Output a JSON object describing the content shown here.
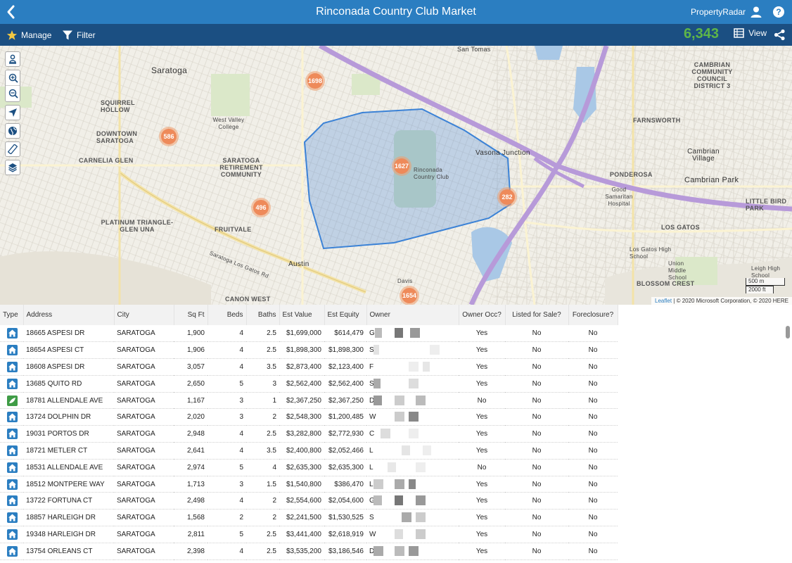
{
  "header": {
    "title": "Rinconada Country Club Market",
    "brand": "PropertyRadar"
  },
  "toolbar": {
    "manage_label": "Manage",
    "filter_label": "Filter",
    "count": "6,343",
    "view_label": "View"
  },
  "map": {
    "labels": {
      "saratoga": "Saratoga",
      "squirrel_hollow": "SQUIRREL HOLLOW",
      "downtown_saratoga": "DOWNTOWN SARATOGA",
      "carnelia_glen": "CARNELIA GLEN",
      "saratoga_retirement": "SARATOGA RETIREMENT COMMUNITY",
      "platinum_triangle": "PLATINUM TRIANGLE-GLEN UNA",
      "fruitvale": "FRUITVALE",
      "west_valley": "West Valley College",
      "rinconada": "Rinconada Country Club",
      "vasona": "Vasona Junction",
      "farnsworth": "FARNSWORTH",
      "cambrian_village": "Cambrian Village",
      "cambrian_park": "Cambrian Park",
      "ponderosa": "PONDEROSA",
      "good_samaritan": "Good Samaritan Hospital",
      "los_gatos": "LOS GATOS",
      "austin": "Austin",
      "canon_west": "CANON WEST",
      "blossom_crest": "BLOSSOM CREST",
      "cambrian_community": "CAMBRIAN COMMUNITY COUNCIL DISTRICT 3",
      "san_tomas": "San Tomas",
      "little_bird_park": "LITTLE BIRD PARK",
      "los_gatos_high": "Los Gatos High School",
      "union_middle": "Union Middle School",
      "leigh_high": "Leigh High School",
      "davis": "Davis",
      "saratoga_los_gatos_rd": "Saratoga Los Gatos Rd"
    },
    "clusters": [
      {
        "label": "1698"
      },
      {
        "label": "586"
      },
      {
        "label": "1627"
      },
      {
        "label": "282"
      },
      {
        "label": "496"
      },
      {
        "label": "1654"
      }
    ],
    "scale": {
      "metric": "500 m",
      "imperial": "2000 ft"
    },
    "attribution": {
      "link": "Leaflet",
      "text": " | © 2020 Microsoft Corporation, © 2020 HERE"
    }
  },
  "table": {
    "columns": [
      "Type",
      "Address",
      "City",
      "Sq Ft",
      "Beds",
      "Baths",
      "Est Value",
      "Est Equity",
      "Owner",
      "Owner Occ?",
      "Listed for Sale?",
      "Foreclosure?"
    ],
    "rows": [
      {
        "type": "house",
        "address": "18665 ASPESI DR",
        "city": "SARATOGA",
        "sqft": "1,900",
        "beds": "4",
        "baths": "2.5",
        "value": "$1,699,000",
        "equity": "$614,479",
        "owner": "G",
        "occ": "Yes",
        "listed": "No",
        "foreclosure": "No"
      },
      {
        "type": "house",
        "address": "18654 ASPESI CT",
        "city": "SARATOGA",
        "sqft": "1,906",
        "beds": "4",
        "baths": "2.5",
        "value": "$1,898,300",
        "equity": "$1,898,300",
        "owner": "S",
        "occ": "Yes",
        "listed": "No",
        "foreclosure": "No"
      },
      {
        "type": "house",
        "address": "18608 ASPESI DR",
        "city": "SARATOGA",
        "sqft": "3,057",
        "beds": "4",
        "baths": "3.5",
        "value": "$2,873,400",
        "equity": "$2,123,400",
        "owner": "F",
        "occ": "Yes",
        "listed": "No",
        "foreclosure": "No"
      },
      {
        "type": "house",
        "address": "13685 QUITO RD",
        "city": "SARATOGA",
        "sqft": "2,650",
        "beds": "5",
        "baths": "3",
        "value": "$2,562,400",
        "equity": "$2,562,400",
        "owner": "S",
        "occ": "Yes",
        "listed": "No",
        "foreclosure": "No"
      },
      {
        "type": "land",
        "address": "18781 ALLENDALE AVE",
        "city": "SARATOGA",
        "sqft": "1,167",
        "beds": "3",
        "baths": "1",
        "value": "$2,367,250",
        "equity": "$2,367,250",
        "owner": "D",
        "occ": "No",
        "listed": "No",
        "foreclosure": "No"
      },
      {
        "type": "house",
        "address": "13724 DOLPHIN DR",
        "city": "SARATOGA",
        "sqft": "2,020",
        "beds": "3",
        "baths": "2",
        "value": "$2,548,300",
        "equity": "$1,200,485",
        "owner": "W",
        "occ": "Yes",
        "listed": "No",
        "foreclosure": "No"
      },
      {
        "type": "house",
        "address": "19031 PORTOS DR",
        "city": "SARATOGA",
        "sqft": "2,948",
        "beds": "4",
        "baths": "2.5",
        "value": "$3,282,800",
        "equity": "$2,772,930",
        "owner": "C",
        "occ": "Yes",
        "listed": "No",
        "foreclosure": "No"
      },
      {
        "type": "house",
        "address": "18721 METLER CT",
        "city": "SARATOGA",
        "sqft": "2,641",
        "beds": "4",
        "baths": "3.5",
        "value": "$2,400,800",
        "equity": "$2,052,466",
        "owner": "L",
        "occ": "Yes",
        "listed": "No",
        "foreclosure": "No"
      },
      {
        "type": "house",
        "address": "18531 ALLENDALE AVE",
        "city": "SARATOGA",
        "sqft": "2,974",
        "beds": "5",
        "baths": "4",
        "value": "$2,635,300",
        "equity": "$2,635,300",
        "owner": "L",
        "occ": "No",
        "listed": "No",
        "foreclosure": "No"
      },
      {
        "type": "house",
        "address": "18512 MONTPERE WAY",
        "city": "SARATOGA",
        "sqft": "1,713",
        "beds": "3",
        "baths": "1.5",
        "value": "$1,540,800",
        "equity": "$386,470",
        "owner": "L",
        "occ": "Yes",
        "listed": "No",
        "foreclosure": "No"
      },
      {
        "type": "house",
        "address": "13722 FORTUNA CT",
        "city": "SARATOGA",
        "sqft": "2,498",
        "beds": "4",
        "baths": "2",
        "value": "$2,554,600",
        "equity": "$2,054,600",
        "owner": "G",
        "occ": "Yes",
        "listed": "No",
        "foreclosure": "No"
      },
      {
        "type": "house",
        "address": "18857 HARLEIGH DR",
        "city": "SARATOGA",
        "sqft": "1,568",
        "beds": "2",
        "baths": "2",
        "value": "$2,241,500",
        "equity": "$1,530,525",
        "owner": "S",
        "occ": "Yes",
        "listed": "No",
        "foreclosure": "No"
      },
      {
        "type": "house",
        "address": "19348 HARLEIGH DR",
        "city": "SARATOGA",
        "sqft": "2,811",
        "beds": "5",
        "baths": "2.5",
        "value": "$3,441,400",
        "equity": "$2,618,919",
        "owner": "W",
        "occ": "Yes",
        "listed": "No",
        "foreclosure": "No"
      },
      {
        "type": "house",
        "address": "13754 ORLEANS CT",
        "city": "SARATOGA",
        "sqft": "2,398",
        "beds": "4",
        "baths": "2.5",
        "value": "$3,535,200",
        "equity": "$3,186,546",
        "owner": "D",
        "occ": "Yes",
        "listed": "No",
        "foreclosure": "No"
      }
    ]
  }
}
